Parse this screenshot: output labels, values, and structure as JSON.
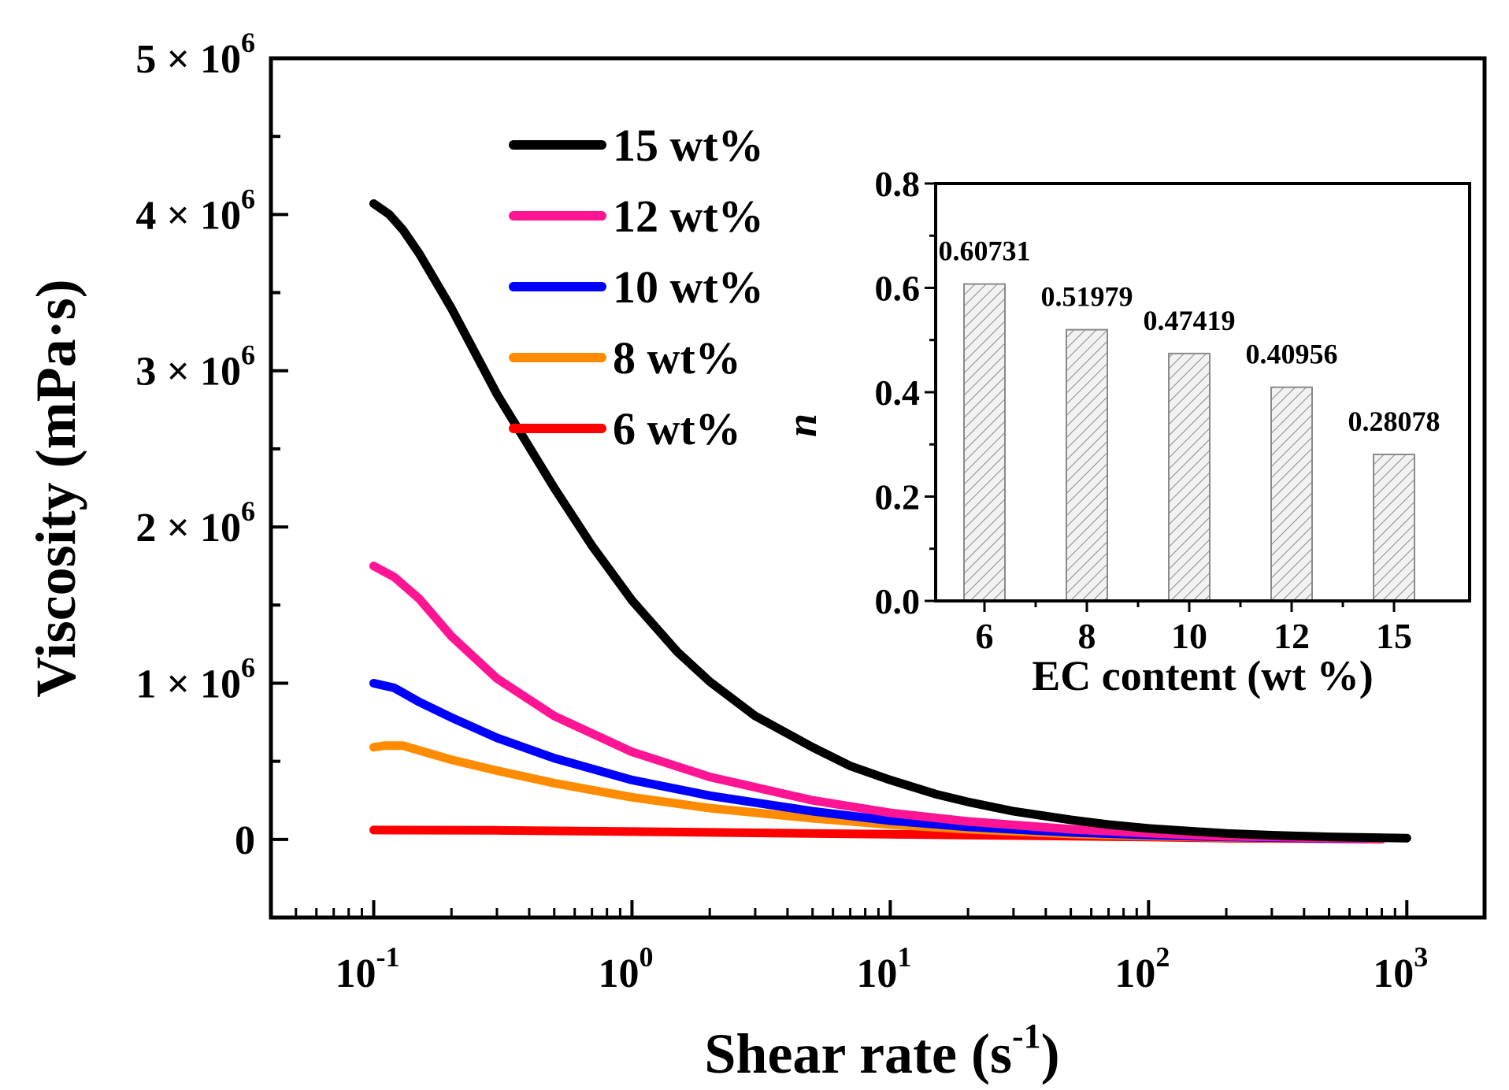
{
  "chart_data": [
    {
      "type": "line",
      "xscale": "log",
      "xlabel_main": "Shear rate (s",
      "xlabel_sup": "-1",
      "xlabel_close": ")",
      "ylabel": "Viscosity (mPa·s)",
      "xlim": [
        0.04,
        2000
      ],
      "ylim": [
        -500000,
        5000000
      ],
      "xtick_values": [
        0.1,
        1,
        10,
        100,
        1000
      ],
      "xtick_base": "10",
      "xtick_exponents": [
        "-1",
        "0",
        "1",
        "2",
        "3"
      ],
      "ytick_values": [
        0,
        1000000,
        2000000,
        3000000,
        4000000,
        5000000
      ],
      "ytick_labels": [
        {
          "value": 0,
          "text": "0",
          "mantissa": "",
          "exponent": ""
        },
        {
          "value": 1000000,
          "text": "",
          "mantissa": "1 × 10",
          "exponent": "6"
        },
        {
          "value": 2000000,
          "text": "",
          "mantissa": "2 × 10",
          "exponent": "6"
        },
        {
          "value": 3000000,
          "text": "",
          "mantissa": "3 × 10",
          "exponent": "6"
        },
        {
          "value": 4000000,
          "text": "",
          "mantissa": "4 × 10",
          "exponent": "6"
        },
        {
          "value": 5000000,
          "text": "",
          "mantissa": "5 × 10",
          "exponent": "6"
        }
      ],
      "series": [
        {
          "name": "15 wt%",
          "color": "#000000",
          "x": [
            0.1,
            0.115,
            0.13,
            0.15,
            0.2,
            0.3,
            0.5,
            0.7,
            1,
            1.5,
            2,
            3,
            5,
            7,
            10,
            15,
            20,
            30,
            50,
            70,
            100,
            200,
            300,
            500,
            1000
          ],
          "y": [
            4070000,
            4000000,
            3900000,
            3750000,
            3400000,
            2850000,
            2250000,
            1880000,
            1530000,
            1200000,
            1010000,
            790000,
            590000,
            470000,
            380000,
            290000,
            240000,
            180000,
            125000,
            95000,
            70000,
            38000,
            27000,
            16000,
            8000
          ]
        },
        {
          "name": "12 wt%",
          "color": "#ff1493",
          "x": [
            0.1,
            0.12,
            0.15,
            0.2,
            0.3,
            0.5,
            1,
            2,
            5,
            10,
            20,
            50,
            100,
            200,
            500,
            800
          ],
          "y": [
            1750000,
            1680000,
            1540000,
            1300000,
            1030000,
            790000,
            560000,
            400000,
            250000,
            170000,
            115000,
            65000,
            40000,
            20000,
            9000,
            5000
          ]
        },
        {
          "name": "10 wt%",
          "color": "#0000ff",
          "x": [
            0.1,
            0.12,
            0.15,
            0.2,
            0.3,
            0.5,
            1,
            2,
            5,
            10,
            20,
            50,
            100,
            200,
            500,
            700
          ],
          "y": [
            1000000,
            970000,
            880000,
            780000,
            650000,
            520000,
            380000,
            280000,
            180000,
            120000,
            80000,
            45000,
            28000,
            15000,
            6000,
            4000
          ]
        },
        {
          "name": "8 wt%",
          "color": "#ff8c00",
          "x": [
            0.1,
            0.11,
            0.13,
            0.15,
            0.2,
            0.3,
            0.5,
            1,
            2,
            5,
            10,
            20,
            50,
            100,
            200,
            500
          ],
          "y": [
            590000,
            600000,
            600000,
            570000,
            510000,
            440000,
            360000,
            270000,
            200000,
            135000,
            95000,
            65000,
            35000,
            22000,
            12000,
            5000
          ]
        },
        {
          "name": "6 wt%",
          "color": "#ff0000",
          "x": [
            0.1,
            0.3,
            1,
            3,
            10,
            30,
            100,
            200,
            500,
            800
          ],
          "y": [
            60000,
            58000,
            50000,
            42000,
            33000,
            25000,
            15000,
            8000,
            4000,
            2000
          ]
        }
      ],
      "legend": {
        "position": "top-center"
      }
    },
    {
      "type": "bar",
      "inset": true,
      "categories": [
        "6",
        "8",
        "10",
        "12",
        "15"
      ],
      "values": [
        0.60731,
        0.51979,
        0.47419,
        0.40956,
        0.28078
      ],
      "value_labels": [
        "0.60731",
        "0.51979",
        "0.47419",
        "0.40956",
        "0.28078"
      ],
      "xlabel": "EC content (wt %)",
      "ylabel": "n",
      "ylim": [
        0,
        0.8
      ],
      "ytick_labels": [
        "0.0",
        "0.2",
        "0.4",
        "0.6",
        "0.8"
      ],
      "bar_pattern": "diagonal-hatch",
      "bar_fill": "#f2f2f2",
      "bar_stroke": "#8a8a8a",
      "position": "top-right"
    }
  ]
}
